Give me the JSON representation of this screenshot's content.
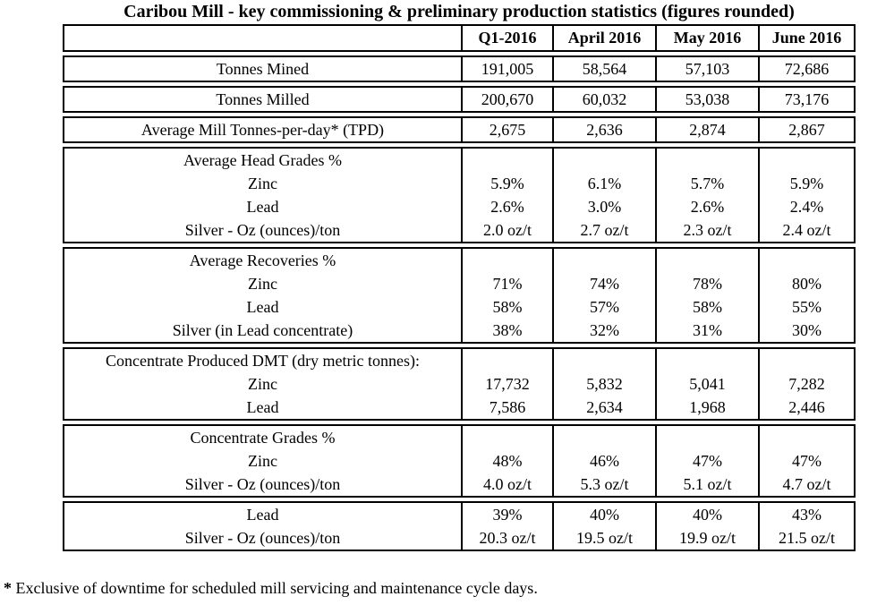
{
  "title": "Caribou Mill - key commissioning & preliminary production statistics (figures rounded)",
  "table": {
    "header": [
      "",
      "Q1-2016",
      "April 2016",
      "May 2016",
      "June 2016"
    ],
    "blocks": [
      {
        "rows": [
          {
            "label": "Tonnes Mined",
            "values": [
              "191,005",
              "58,564",
              "57,103",
              "72,686"
            ]
          }
        ]
      },
      {
        "rows": [
          {
            "label": "Tonnes Milled",
            "values": [
              "200,670",
              "60,032",
              "53,038",
              "73,176"
            ]
          }
        ]
      },
      {
        "rows": [
          {
            "label": "Average Mill Tonnes-per-day* (TPD)",
            "values": [
              "2,675",
              "2,636",
              "2,874",
              "2,867"
            ]
          }
        ]
      },
      {
        "section": "Average Head Grades %",
        "rows": [
          {
            "label": "Zinc",
            "values": [
              "5.9%",
              "6.1%",
              "5.7%",
              "5.9%"
            ]
          },
          {
            "label": "Lead",
            "values": [
              "2.6%",
              "3.0%",
              "2.6%",
              "2.4%"
            ]
          },
          {
            "label": "Silver - Oz (ounces)/ton",
            "values": [
              "2.0 oz/t",
              "2.7 oz/t",
              "2.3 oz/t",
              "2.4 oz/t"
            ]
          }
        ]
      },
      {
        "section": "Average Recoveries %",
        "rows": [
          {
            "label": "Zinc",
            "values": [
              "71%",
              "74%",
              "78%",
              "80%"
            ]
          },
          {
            "label": "Lead",
            "values": [
              "58%",
              "57%",
              "58%",
              "55%"
            ]
          },
          {
            "label": "Silver (in Lead concentrate)",
            "values": [
              "38%",
              "32%",
              "31%",
              "30%"
            ]
          }
        ]
      },
      {
        "section": "Concentrate Produced DMT (dry metric tonnes):",
        "rows": [
          {
            "label": "Zinc",
            "values": [
              "17,732",
              "5,832",
              "5,041",
              "7,282"
            ]
          },
          {
            "label": "Lead",
            "values": [
              "7,586",
              "2,634",
              "1,968",
              "2,446"
            ]
          }
        ]
      },
      {
        "section": "Concentrate Grades %",
        "rows": [
          {
            "label": "Zinc",
            "values": [
              "48%",
              "46%",
              "47%",
              "47%"
            ]
          },
          {
            "label": "Silver - Oz (ounces)/ton",
            "values": [
              "4.0 oz/t",
              "5.3 oz/t",
              "5.1 oz/t",
              "4.7 oz/t"
            ]
          }
        ]
      },
      {
        "rows": [
          {
            "label": "Lead",
            "values": [
              "39%",
              "40%",
              "40%",
              "43%"
            ]
          },
          {
            "label": "Silver - Oz (ounces)/ton",
            "values": [
              "20.3 oz/t",
              "19.5 oz/t",
              "19.9 oz/t",
              "21.5 oz/t"
            ]
          }
        ]
      }
    ]
  },
  "footnote": {
    "marker": "*",
    "text": "Exclusive of downtime for scheduled mill servicing and maintenance cycle days."
  }
}
